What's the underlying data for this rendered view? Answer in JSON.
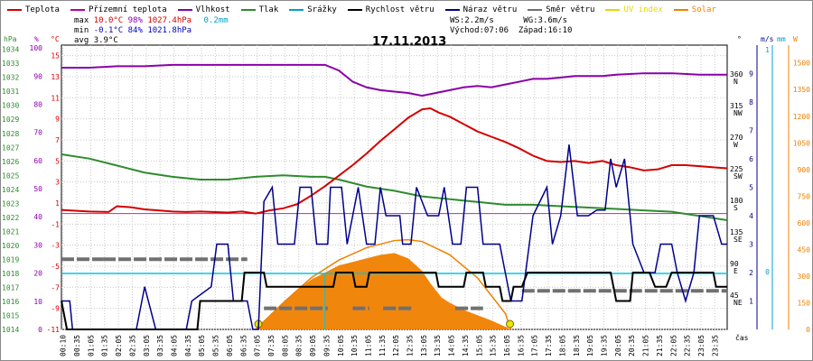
{
  "chart_data": {
    "type": "line",
    "title": "17.11.2013",
    "legend": [
      {
        "name": "Teplota",
        "color": "#d40000"
      },
      {
        "name": "Přízemní teplota",
        "color": "#b000b0"
      },
      {
        "name": "Vlhkost",
        "color": "#8a00a8"
      },
      {
        "name": "Tlak",
        "color": "#2e8b2e"
      },
      {
        "name": "Srážky",
        "color": "#00a0c8"
      },
      {
        "name": "Rychlost větru",
        "color": "#000000"
      },
      {
        "name": "Náraz větru",
        "color": "#00008c"
      },
      {
        "name": "Směr větru",
        "color": "#707070"
      },
      {
        "name": "UV index",
        "color": "#e8d800"
      },
      {
        "name": "Solar",
        "color": "#f08000"
      }
    ],
    "stats": {
      "max_label": "max",
      "max_temp": "10.0°C",
      "max_hum": "98%",
      "max_press": "1027.4hPa",
      "rain": "0.2mm",
      "min_label": "min",
      "min_temp": "-0.1°C",
      "min_hum": "84%",
      "min_press": "1021.8hPa",
      "avg_label": "avg",
      "avg_temp": "3.9°C"
    },
    "wind_info": {
      "ws": "WS:2.2m/s",
      "wg": "WG:3.6m/s",
      "sunrise": "Východ:07:06",
      "sunset": "Západ:16:10"
    },
    "axes": {
      "hpa_unit": "hPa",
      "hum_unit": "%",
      "temp_unit": "°C",
      "dir_unit": "°",
      "ms_unit": "m/s",
      "mm_unit": "mm",
      "w_unit": "W",
      "x_unit": "čas",
      "hpa_ticks": [
        "1034",
        "1033",
        "1032",
        "1031",
        "1030",
        "1029",
        "1028",
        "1027",
        "1026",
        "1025",
        "1024",
        "1023",
        "1022",
        "1021",
        "1020",
        "1019",
        "1018",
        "1017",
        "1016",
        "1015",
        "1014"
      ],
      "hum_ticks": [
        "100",
        "90",
        "80",
        "70",
        "60",
        "50",
        "40",
        "30",
        "20",
        "10",
        "0"
      ],
      "temp_ticks": [
        "15",
        "13",
        "11",
        "9",
        "7",
        "5",
        "3",
        "1",
        "-1",
        "-3",
        "-5",
        "-7",
        "-9",
        "-11"
      ],
      "dir_ticks": [
        "360",
        "315",
        "270",
        "225",
        "180",
        "135",
        "90",
        "45"
      ],
      "dir_letters": [
        "N",
        "NW",
        "W",
        "SW",
        "S",
        "SE",
        "E",
        "NE"
      ],
      "ms_ticks": [
        "9",
        "8",
        "7",
        "6",
        "5",
        "4",
        "3",
        "2",
        "1"
      ],
      "mm_ticks": [
        "1",
        "0"
      ],
      "w_ticks": [
        "1500",
        "1350",
        "1200",
        "1050",
        "900",
        "750",
        "600",
        "450",
        "300",
        "150",
        "0"
      ],
      "x_ticks": [
        "00:10",
        "00:35",
        "01:05",
        "01:35",
        "02:05",
        "02:35",
        "03:05",
        "03:35",
        "04:05",
        "04:35",
        "05:05",
        "05:35",
        "06:05",
        "06:35",
        "07:05",
        "07:35",
        "08:05",
        "08:35",
        "09:05",
        "09:35",
        "10:05",
        "10:35",
        "11:05",
        "11:35",
        "12:05",
        "12:35",
        "13:05",
        "13:35",
        "14:05",
        "14:35",
        "15:05",
        "15:35",
        "16:05",
        "16:35",
        "17:05",
        "17:35",
        "18:05",
        "18:35",
        "19:05",
        "19:35",
        "20:05",
        "20:35",
        "21:05",
        "21:35",
        "22:05",
        "22:35",
        "23:05",
        "23:35"
      ]
    },
    "ranges": {
      "temp": [
        -11,
        16
      ],
      "hpa": [
        1014,
        1034.3
      ],
      "hum": [
        0,
        101
      ],
      "dir": [
        0,
        405
      ],
      "ms": [
        0,
        10
      ],
      "w": [
        0,
        1600
      ],
      "hours": [
        0,
        24
      ]
    },
    "series": {
      "temp": [
        [
          0,
          0.35
        ],
        [
          1,
          0.2
        ],
        [
          1.7,
          0.15
        ],
        [
          2,
          0.7
        ],
        [
          2.5,
          0.6
        ],
        [
          3,
          0.4
        ],
        [
          3.5,
          0.3
        ],
        [
          4,
          0.2
        ],
        [
          4.5,
          0.15
        ],
        [
          5,
          0.2
        ],
        [
          6,
          0.1
        ],
        [
          6.5,
          0.2
        ],
        [
          7,
          0.0
        ],
        [
          7.5,
          0.3
        ],
        [
          8,
          0.5
        ],
        [
          8.5,
          0.9
        ],
        [
          9,
          1.7
        ],
        [
          9.5,
          2.6
        ],
        [
          10,
          3.6
        ],
        [
          10.5,
          4.6
        ],
        [
          11,
          5.7
        ],
        [
          11.5,
          6.9
        ],
        [
          12,
          8.0
        ],
        [
          12.5,
          9.1
        ],
        [
          13,
          9.9
        ],
        [
          13.3,
          10.0
        ],
        [
          13.6,
          9.6
        ],
        [
          14,
          9.2
        ],
        [
          14.5,
          8.5
        ],
        [
          15,
          7.8
        ],
        [
          15.5,
          7.3
        ],
        [
          16,
          6.8
        ],
        [
          16.5,
          6.2
        ],
        [
          17,
          5.5
        ],
        [
          17.5,
          5.0
        ],
        [
          18,
          4.9
        ],
        [
          18.5,
          5.0
        ],
        [
          19,
          4.8
        ],
        [
          19.5,
          5.0
        ],
        [
          20,
          4.6
        ],
        [
          20.5,
          4.4
        ],
        [
          21,
          4.1
        ],
        [
          21.5,
          4.2
        ],
        [
          22,
          4.6
        ],
        [
          22.5,
          4.6
        ],
        [
          23,
          4.5
        ],
        [
          23.5,
          4.4
        ],
        [
          24,
          4.3
        ]
      ],
      "ground": [
        [
          0,
          0
        ],
        [
          24,
          0
        ]
      ],
      "hum": [
        [
          0,
          93
        ],
        [
          1,
          93
        ],
        [
          2,
          93.5
        ],
        [
          3,
          93.5
        ],
        [
          4,
          94
        ],
        [
          5,
          94
        ],
        [
          6,
          94
        ],
        [
          7,
          94
        ],
        [
          8,
          94
        ],
        [
          9,
          94
        ],
        [
          9.5,
          94
        ],
        [
          10,
          92
        ],
        [
          10.5,
          88
        ],
        [
          11,
          86
        ],
        [
          11.5,
          85
        ],
        [
          12,
          84.5
        ],
        [
          12.5,
          84
        ],
        [
          13,
          83
        ],
        [
          13.5,
          84
        ],
        [
          14,
          85
        ],
        [
          14.5,
          86
        ],
        [
          15,
          86.5
        ],
        [
          15.5,
          86
        ],
        [
          16,
          87
        ],
        [
          16.5,
          88
        ],
        [
          17,
          89
        ],
        [
          17.5,
          89
        ],
        [
          18,
          89.5
        ],
        [
          18.5,
          90
        ],
        [
          19,
          90
        ],
        [
          19.5,
          90
        ],
        [
          20,
          90.5
        ],
        [
          21,
          91
        ],
        [
          22,
          91
        ],
        [
          23,
          90.5
        ],
        [
          24,
          90.5
        ]
      ],
      "press": [
        [
          0,
          1026.5
        ],
        [
          1,
          1026.2
        ],
        [
          2,
          1025.7
        ],
        [
          3,
          1025.2
        ],
        [
          4,
          1024.9
        ],
        [
          5,
          1024.7
        ],
        [
          6,
          1024.7
        ],
        [
          7,
          1024.9
        ],
        [
          8,
          1025.0
        ],
        [
          9,
          1024.9
        ],
        [
          9.5,
          1024.9
        ],
        [
          10,
          1024.7
        ],
        [
          11,
          1024.2
        ],
        [
          12,
          1023.9
        ],
        [
          13,
          1023.5
        ],
        [
          14,
          1023.3
        ],
        [
          15,
          1023.1
        ],
        [
          16,
          1022.9
        ],
        [
          17,
          1022.9
        ],
        [
          18,
          1022.8
        ],
        [
          19,
          1022.7
        ],
        [
          20,
          1022.6
        ],
        [
          21,
          1022.5
        ],
        [
          22,
          1022.4
        ],
        [
          23,
          1022.1
        ],
        [
          24,
          1021.8
        ]
      ],
      "gust": [
        [
          0,
          1
        ],
        [
          0.3,
          1
        ],
        [
          0.4,
          0
        ],
        [
          2.7,
          0
        ],
        [
          3,
          1.5
        ],
        [
          3.4,
          0
        ],
        [
          4.5,
          0
        ],
        [
          4.7,
          1
        ],
        [
          5.4,
          1.5
        ],
        [
          5.6,
          3
        ],
        [
          6,
          3
        ],
        [
          6.2,
          1
        ],
        [
          6.7,
          1
        ],
        [
          6.9,
          0
        ],
        [
          7.1,
          0
        ],
        [
          7.3,
          4.5
        ],
        [
          7.6,
          5
        ],
        [
          7.8,
          3
        ],
        [
          8.4,
          3
        ],
        [
          8.6,
          5
        ],
        [
          9,
          5
        ],
        [
          9.2,
          3
        ],
        [
          9.6,
          3
        ],
        [
          9.7,
          5
        ],
        [
          10.1,
          5
        ],
        [
          10.3,
          3
        ],
        [
          10.7,
          5
        ],
        [
          11,
          3
        ],
        [
          11.3,
          3
        ],
        [
          11.5,
          5
        ],
        [
          11.7,
          4
        ],
        [
          12.2,
          4
        ],
        [
          12.3,
          3
        ],
        [
          12.6,
          3
        ],
        [
          12.8,
          5
        ],
        [
          13.2,
          4
        ],
        [
          13.6,
          4
        ],
        [
          13.8,
          5
        ],
        [
          14.1,
          3
        ],
        [
          14.4,
          3
        ],
        [
          14.6,
          5
        ],
        [
          15,
          5
        ],
        [
          15.2,
          3
        ],
        [
          15.8,
          3
        ],
        [
          16,
          2
        ],
        [
          16.2,
          1
        ],
        [
          16.6,
          1
        ],
        [
          16.8,
          2.5
        ],
        [
          17,
          4
        ],
        [
          17.5,
          5
        ],
        [
          17.7,
          3
        ],
        [
          18,
          4
        ],
        [
          18.3,
          6.5
        ],
        [
          18.6,
          4
        ],
        [
          19,
          4
        ],
        [
          19.3,
          4.2
        ],
        [
          19.6,
          4.2
        ],
        [
          19.8,
          6
        ],
        [
          20,
          5
        ],
        [
          20.3,
          6
        ],
        [
          20.6,
          3
        ],
        [
          21,
          2
        ],
        [
          21.4,
          2
        ],
        [
          21.6,
          3
        ],
        [
          22,
          3
        ],
        [
          22.2,
          2
        ],
        [
          22.5,
          1
        ],
        [
          22.8,
          2
        ],
        [
          23,
          4
        ],
        [
          23.5,
          4
        ],
        [
          23.8,
          3
        ],
        [
          24,
          3
        ]
      ],
      "speed": [
        [
          0,
          1
        ],
        [
          0.2,
          0
        ],
        [
          4.9,
          0
        ],
        [
          5,
          1
        ],
        [
          6.5,
          1
        ],
        [
          6.6,
          2
        ],
        [
          7.3,
          2
        ],
        [
          7.4,
          1.5
        ],
        [
          9.8,
          1.5
        ],
        [
          9.9,
          2
        ],
        [
          10.5,
          2
        ],
        [
          10.6,
          1.5
        ],
        [
          11,
          1.5
        ],
        [
          11.1,
          2
        ],
        [
          12,
          2
        ],
        [
          13.5,
          2
        ],
        [
          13.6,
          1.5
        ],
        [
          14.5,
          1.5
        ],
        [
          14.6,
          2
        ],
        [
          15.2,
          2
        ],
        [
          15.3,
          1.5
        ],
        [
          15.8,
          1.5
        ],
        [
          15.9,
          1
        ],
        [
          16.2,
          1
        ],
        [
          16.3,
          1.5
        ],
        [
          16.6,
          1.5
        ],
        [
          16.8,
          2
        ],
        [
          19.8,
          2
        ],
        [
          20,
          1
        ],
        [
          20.5,
          1
        ],
        [
          20.6,
          2
        ],
        [
          21.2,
          2
        ],
        [
          21.4,
          1.5
        ],
        [
          21.8,
          1.5
        ],
        [
          22,
          2
        ],
        [
          23.5,
          2
        ],
        [
          23.6,
          1.5
        ],
        [
          24,
          1.5
        ]
      ],
      "dir_segments": [
        [
          0,
          1.5,
          100
        ],
        [
          1.5,
          6.7,
          100
        ],
        [
          7.3,
          9.6,
          30
        ],
        [
          10.5,
          11.1,
          30
        ],
        [
          11.6,
          12.7,
          30
        ],
        [
          14.2,
          15.2,
          30
        ],
        [
          16.6,
          24,
          55
        ]
      ],
      "solar": [
        [
          7.0,
          0
        ],
        [
          7.5,
          70
        ],
        [
          8,
          150
        ],
        [
          8.5,
          220
        ],
        [
          9,
          280
        ],
        [
          9.5,
          320
        ],
        [
          10,
          360
        ],
        [
          10.5,
          380
        ],
        [
          11,
          400
        ],
        [
          11.5,
          420
        ],
        [
          12,
          430
        ],
        [
          12.5,
          400
        ],
        [
          13,
          330
        ],
        [
          13.3,
          260
        ],
        [
          13.5,
          220
        ],
        [
          13.7,
          180
        ],
        [
          14,
          150
        ],
        [
          14.5,
          110
        ],
        [
          15,
          80
        ],
        [
          15.5,
          50
        ],
        [
          16,
          15
        ],
        [
          16.2,
          0
        ]
      ],
      "solar_theory": [
        [
          7.0,
          0
        ],
        [
          8,
          150
        ],
        [
          9,
          290
        ],
        [
          10,
          390
        ],
        [
          11,
          460
        ],
        [
          12,
          500
        ],
        [
          12.5,
          505
        ],
        [
          13,
          495
        ],
        [
          14,
          420
        ],
        [
          15,
          290
        ],
        [
          16,
          90
        ],
        [
          16.2,
          0
        ]
      ],
      "rain": [
        [
          0,
          0
        ],
        [
          24,
          0
        ]
      ]
    }
  }
}
